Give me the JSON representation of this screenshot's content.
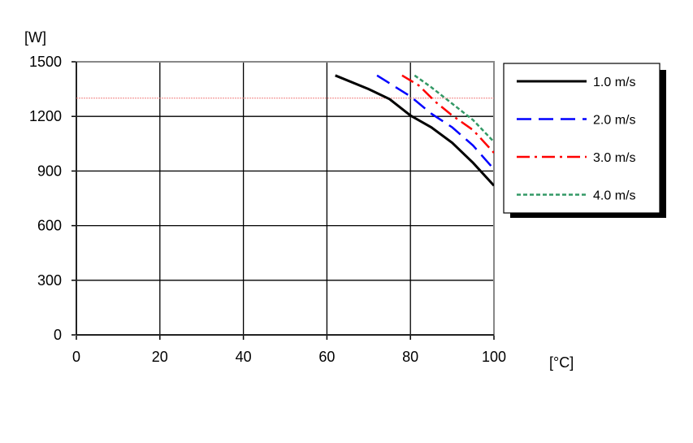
{
  "chart_data": {
    "type": "line",
    "y_label": "[W]",
    "x_label": "[°C]",
    "xlim": [
      0,
      100
    ],
    "xticks": [
      0,
      20,
      40,
      60,
      80,
      100
    ],
    "ylim": [
      0,
      1500
    ],
    "yticks": [
      0,
      300,
      600,
      900,
      1200,
      1500
    ],
    "grid": true,
    "legend": "right",
    "reference_line": {
      "value": 1300,
      "color": "#f08080"
    },
    "series": [
      {
        "name": "1.0 m/s",
        "color": "#000000",
        "dash": "solid",
        "x": [
          62,
          70,
          75,
          80,
          85,
          90,
          95,
          100
        ],
        "values": [
          1425,
          1350,
          1295,
          1205,
          1140,
          1055,
          945,
          820
        ]
      },
      {
        "name": "2.0 m/s",
        "color": "#0000ff",
        "dash": "dashed",
        "x": [
          72,
          80,
          85,
          90,
          95,
          100
        ],
        "values": [
          1425,
          1310,
          1215,
          1140,
          1040,
          910
        ]
      },
      {
        "name": "3.0 m/s",
        "color": "#ff0000",
        "dash": "dashdot",
        "x": [
          78,
          82,
          86,
          90,
          95,
          100
        ],
        "values": [
          1425,
          1370,
          1280,
          1205,
          1125,
          1000
        ]
      },
      {
        "name": "4.0 m/s",
        "color": "#339966",
        "dash": "dotted",
        "x": [
          81,
          85,
          90,
          95,
          100
        ],
        "values": [
          1425,
          1360,
          1270,
          1180,
          1060
        ]
      }
    ]
  }
}
